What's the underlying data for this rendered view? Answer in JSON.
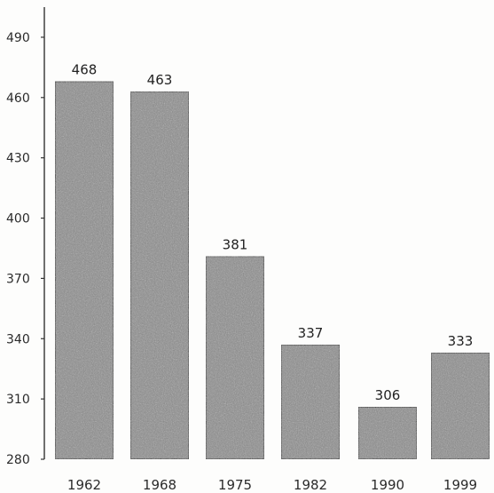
{
  "chart_data": {
    "type": "bar",
    "title": "",
    "xlabel": "",
    "ylabel": "",
    "categories": [
      "1962",
      "1968",
      "1975",
      "1982",
      "1990",
      "1999"
    ],
    "values": [
      468,
      463,
      381,
      337,
      306,
      333
    ],
    "value_labels": [
      "468",
      "463",
      "381",
      "337",
      "306",
      "333"
    ],
    "ylim": [
      280,
      505
    ],
    "yticks": [
      280,
      310,
      340,
      370,
      400,
      430,
      460,
      490
    ],
    "ytick_labels": [
      "280",
      "310",
      "340",
      "370",
      "400",
      "430",
      "460",
      "490"
    ],
    "grid": false,
    "legend": "none",
    "colors": {
      "bar_fill": "#8a8a8a",
      "bar_stroke": "#2e2e2e",
      "axis": "#333333",
      "text": "#2b2b2b"
    }
  }
}
